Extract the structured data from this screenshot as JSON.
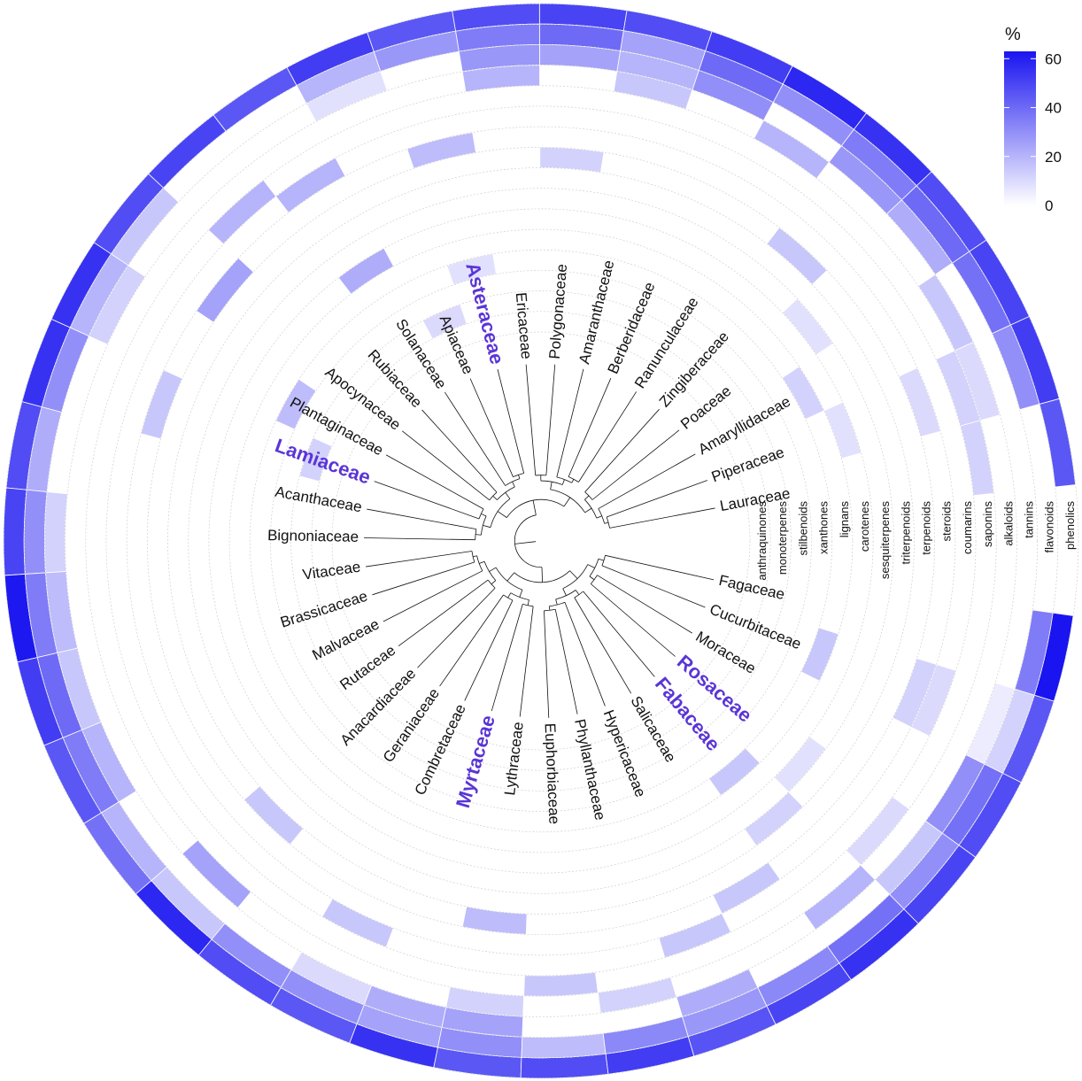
{
  "chart_data": {
    "type": "heatmap",
    "layout": "circular",
    "families": [
      "Lauraceae",
      "Piperaceae",
      "Amaryllidaceae",
      "Poaceae",
      "Zingiberaceae",
      "Ranunculaceae",
      "Berberidaceae",
      "Amaranthaceae",
      "Polygonaceae",
      "Ericaceae",
      "Asteraceae",
      "Apiaceae",
      "Solanaceae",
      "Rubiaceae",
      "Apocynaceae",
      "Plantaginaceae",
      "Lamiaceae",
      "Acanthaceae",
      "Bignoniaceae",
      "Vitaceae",
      "Brassicaceae",
      "Malvaceae",
      "Rutaceae",
      "Anacardiaceae",
      "Geraniaceae",
      "Combretaceae",
      "Myrtaceae",
      "Lythraceae",
      "Euphorbiaceae",
      "Phyllanthaceae",
      "Hypericaceae",
      "Salicaceae",
      "Fabaceae",
      "Rosaceae",
      "Moraceae",
      "Cucurbitaceae",
      "Fagaceae"
    ],
    "highlighted": [
      "Asteraceae",
      "Lamiaceae",
      "Myrtaceae",
      "Fabaceae",
      "Rosaceae"
    ],
    "compounds": [
      "phenolics",
      "flavonoids",
      "tannins",
      "alkaloids",
      "saponins",
      "coumarins",
      "steroids",
      "terpenoids",
      "triterpenoids",
      "sesquiterpenes",
      "carotenes",
      "lignans",
      "xanthones",
      "stilbenoids",
      "monoterpenes",
      "anthraquinones"
    ],
    "values": {
      "Lauraceae": [
        45,
        0,
        0,
        0,
        12,
        0,
        0,
        0,
        0,
        0,
        0,
        0,
        0,
        0,
        0,
        0
      ],
      "Piperaceae": [
        52,
        30,
        0,
        10,
        12,
        0,
        10,
        0,
        0,
        0,
        8,
        0,
        0,
        0,
        0,
        0
      ],
      "Amaryllidaceae": [
        50,
        38,
        0,
        15,
        0,
        0,
        0,
        0,
        0,
        0,
        0,
        12,
        0,
        0,
        0,
        0
      ],
      "Poaceae": [
        48,
        40,
        22,
        0,
        0,
        0,
        0,
        0,
        0,
        8,
        0,
        0,
        0,
        0,
        0,
        0
      ],
      "Zingiberaceae": [
        55,
        35,
        28,
        0,
        0,
        0,
        0,
        15,
        0,
        0,
        0,
        0,
        0,
        0,
        0,
        0
      ],
      "Ranunculaceae": [
        58,
        30,
        0,
        20,
        0,
        0,
        0,
        0,
        0,
        0,
        0,
        0,
        0,
        0,
        0,
        0
      ],
      "Berberidaceae": [
        52,
        40,
        30,
        0,
        0,
        0,
        0,
        0,
        0,
        0,
        0,
        0,
        0,
        0,
        0,
        0
      ],
      "Amaranthaceae": [
        48,
        25,
        20,
        15,
        0,
        0,
        0,
        0,
        0,
        0,
        0,
        0,
        0,
        0,
        0,
        0
      ],
      "Polygonaceae": [
        50,
        40,
        25,
        0,
        0,
        0,
        0,
        12,
        0,
        0,
        0,
        0,
        0,
        0,
        0,
        0
      ],
      "Ericaceae": [
        48,
        35,
        28,
        20,
        0,
        0,
        0,
        0,
        0,
        0,
        0,
        0,
        0,
        0,
        0,
        0
      ],
      "Asteraceae": [
        45,
        28,
        0,
        0,
        0,
        0,
        18,
        0,
        0,
        0,
        0,
        0,
        8,
        0,
        0,
        0
      ],
      "Apiaceae": [
        52,
        20,
        8,
        0,
        0,
        0,
        0,
        0,
        0,
        0,
        0,
        0,
        0,
        0,
        10,
        0
      ],
      "Solanaceae": [
        45,
        0,
        0,
        0,
        0,
        20,
        0,
        0,
        0,
        0,
        22,
        0,
        0,
        0,
        0,
        0
      ],
      "Rubiaceae": [
        50,
        0,
        0,
        0,
        20,
        0,
        0,
        0,
        0,
        0,
        0,
        0,
        0,
        0,
        0,
        0
      ],
      "Apocynaceae": [
        48,
        15,
        0,
        0,
        0,
        0,
        25,
        0,
        0,
        0,
        0,
        0,
        0,
        0,
        0,
        0
      ],
      "Plantaginaceae": [
        55,
        20,
        12,
        0,
        0,
        0,
        0,
        0,
        0,
        0,
        0,
        0,
        18,
        0,
        0,
        0
      ],
      "Lamiaceae": [
        55,
        30,
        0,
        0,
        0,
        0,
        15,
        0,
        0,
        0,
        0,
        0,
        0,
        0,
        12,
        0
      ],
      "Acanthaceae": [
        48,
        22,
        0,
        0,
        0,
        0,
        0,
        0,
        0,
        0,
        0,
        0,
        0,
        0,
        0,
        0
      ],
      "Bignoniaceae": [
        50,
        30,
        12,
        0,
        0,
        0,
        0,
        0,
        0,
        0,
        0,
        0,
        0,
        0,
        0,
        0
      ],
      "Vitaceae": [
        62,
        35,
        18,
        0,
        0,
        0,
        0,
        0,
        0,
        0,
        0,
        0,
        0,
        0,
        0,
        0
      ],
      "Brassicaceae": [
        52,
        40,
        15,
        0,
        0,
        0,
        0,
        0,
        0,
        0,
        0,
        0,
        0,
        0,
        0,
        0
      ],
      "Malvaceae": [
        45,
        35,
        20,
        0,
        0,
        0,
        0,
        0,
        0,
        0,
        0,
        0,
        0,
        0,
        0,
        0
      ],
      "Rutaceae": [
        38,
        20,
        0,
        0,
        0,
        0,
        0,
        0,
        0,
        0,
        0,
        0,
        0,
        0,
        0,
        0
      ],
      "Anacardiaceae": [
        58,
        15,
        0,
        25,
        0,
        0,
        0,
        15,
        0,
        0,
        0,
        0,
        0,
        0,
        0,
        0
      ],
      "Geraniaceae": [
        48,
        30,
        0,
        0,
        0,
        0,
        0,
        0,
        0,
        0,
        0,
        0,
        0,
        0,
        0,
        0
      ],
      "Combretaceae": [
        45,
        30,
        10,
        0,
        0,
        15,
        0,
        0,
        0,
        0,
        0,
        0,
        0,
        0,
        0,
        0
      ],
      "Myrtaceae": [
        55,
        25,
        22,
        0,
        0,
        0,
        0,
        0,
        0,
        0,
        0,
        0,
        0,
        0,
        0,
        0
      ],
      "Lythraceae": [
        45,
        30,
        25,
        12,
        0,
        0,
        0,
        18,
        0,
        0,
        0,
        0,
        0,
        0,
        0,
        0
      ],
      "Euphorbiaceae": [
        48,
        18,
        0,
        0,
        15,
        0,
        0,
        0,
        0,
        0,
        0,
        0,
        0,
        0,
        0,
        0
      ],
      "Phyllanthaceae": [
        52,
        32,
        0,
        12,
        0,
        0,
        0,
        0,
        0,
        0,
        0,
        0,
        0,
        0,
        0,
        0
      ],
      "Hypericaceae": [
        46,
        28,
        22,
        0,
        0,
        15,
        0,
        0,
        0,
        0,
        0,
        0,
        0,
        0,
        0,
        0
      ],
      "Salicaceae": [
        50,
        32,
        0,
        0,
        0,
        0,
        15,
        0,
        0,
        0,
        0,
        0,
        0,
        0,
        0,
        0
      ],
      "Fabaceae": [
        55,
        38,
        0,
        20,
        0,
        0,
        0,
        0,
        12,
        0,
        0,
        15,
        0,
        0,
        0,
        0
      ],
      "Rosaceae": [
        50,
        30,
        15,
        0,
        10,
        0,
        0,
        0,
        0,
        8,
        0,
        0,
        0,
        0,
        0,
        0
      ],
      "Moraceae": [
        48,
        38,
        30,
        0,
        0,
        0,
        0,
        0,
        0,
        0,
        0,
        0,
        0,
        0,
        0,
        0
      ],
      "Cucurbitaceae": [
        45,
        12,
        5,
        0,
        0,
        10,
        12,
        0,
        0,
        0,
        0,
        15,
        0,
        0,
        0,
        0
      ],
      "Fagaceae": [
        70,
        35,
        0,
        0,
        0,
        0,
        0,
        0,
        0,
        0,
        0,
        0,
        0,
        0,
        0,
        0
      ]
    },
    "legend": {
      "title": "%",
      "ticks": [
        0,
        20,
        40,
        60
      ],
      "range": [
        0,
        63
      ],
      "color_low": "#ffffff",
      "color_high": "#1a14f0"
    },
    "colors": {
      "highlight_text": "#5a35d6",
      "grid": "#cfcfcf",
      "tree": "#111111"
    }
  }
}
